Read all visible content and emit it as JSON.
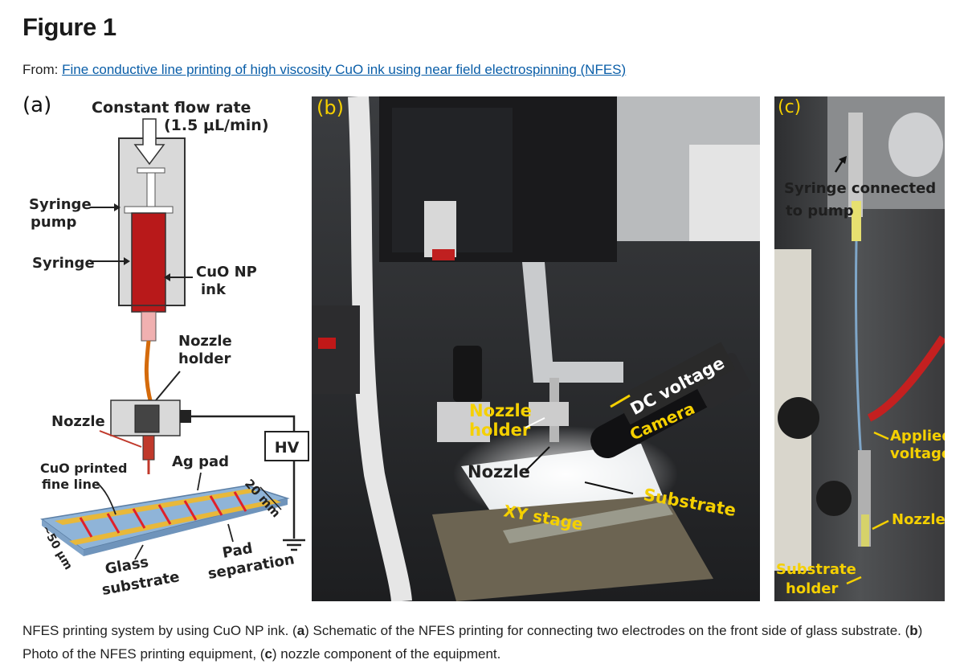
{
  "figure": {
    "title": "Figure 1",
    "from_prefix": "From: ",
    "from_link": "Fine conductive line printing of high viscosity CuO ink using near field electrospinning (NFES)"
  },
  "panel_a": {
    "label": "(a)",
    "flow_title": "Constant flow rate",
    "flow_rate": "(1.5 μL/min)",
    "syringe_pump": [
      "Syringe",
      "pump"
    ],
    "syringe": "Syringe",
    "ink": [
      "CuO NP",
      "ink"
    ],
    "nozzle_holder": [
      "Nozzle",
      "holder"
    ],
    "nozzle": "Nozzle",
    "hv": "HV",
    "printed_line": [
      "CuO printed",
      "fine line"
    ],
    "ag_pad": "Ag pad",
    "dim_20mm": "20 mm",
    "dim_50um": "~50 μm",
    "glass": [
      "Glass",
      "substrate"
    ],
    "pad_sep": [
      "Pad",
      "separation"
    ]
  },
  "panel_b": {
    "label": "(b)",
    "dc_voltage": "DC voltage",
    "camera": "Camera",
    "nozzle_holder": [
      "Nozzle",
      "holder"
    ],
    "nozzle": "Nozzle",
    "substrate": "Substrate",
    "xy_stage": "XY stage"
  },
  "panel_c": {
    "label": "(c)",
    "syringe_connected": [
      "Syringe connected",
      "to pump"
    ],
    "applied_voltage": [
      "Applied",
      "voltage"
    ],
    "nozzle": "Nozzle",
    "substrate_holder": [
      "Substrate",
      "holder"
    ]
  },
  "caption": {
    "t1": "NFES printing system by using CuO NP ink. (",
    "b1": "a",
    "t2": ") Schematic of the NFES printing for connecting two electrodes on the front side of glass substrate. (",
    "b2": "b",
    "t3": ") Photo of the NFES printing equipment, (",
    "b3": "c",
    "t4": ") nozzle component of the equipment."
  },
  "colors": {
    "ink_red": "#b8191a",
    "syringe_gray": "#d9d9d9",
    "annotation_yellow": "#f5d000",
    "link_blue": "#0a5ea8",
    "glass_blue": "#8fb4d8",
    "pad_yellow": "#e8b83a",
    "line_red": "#e0202a"
  }
}
